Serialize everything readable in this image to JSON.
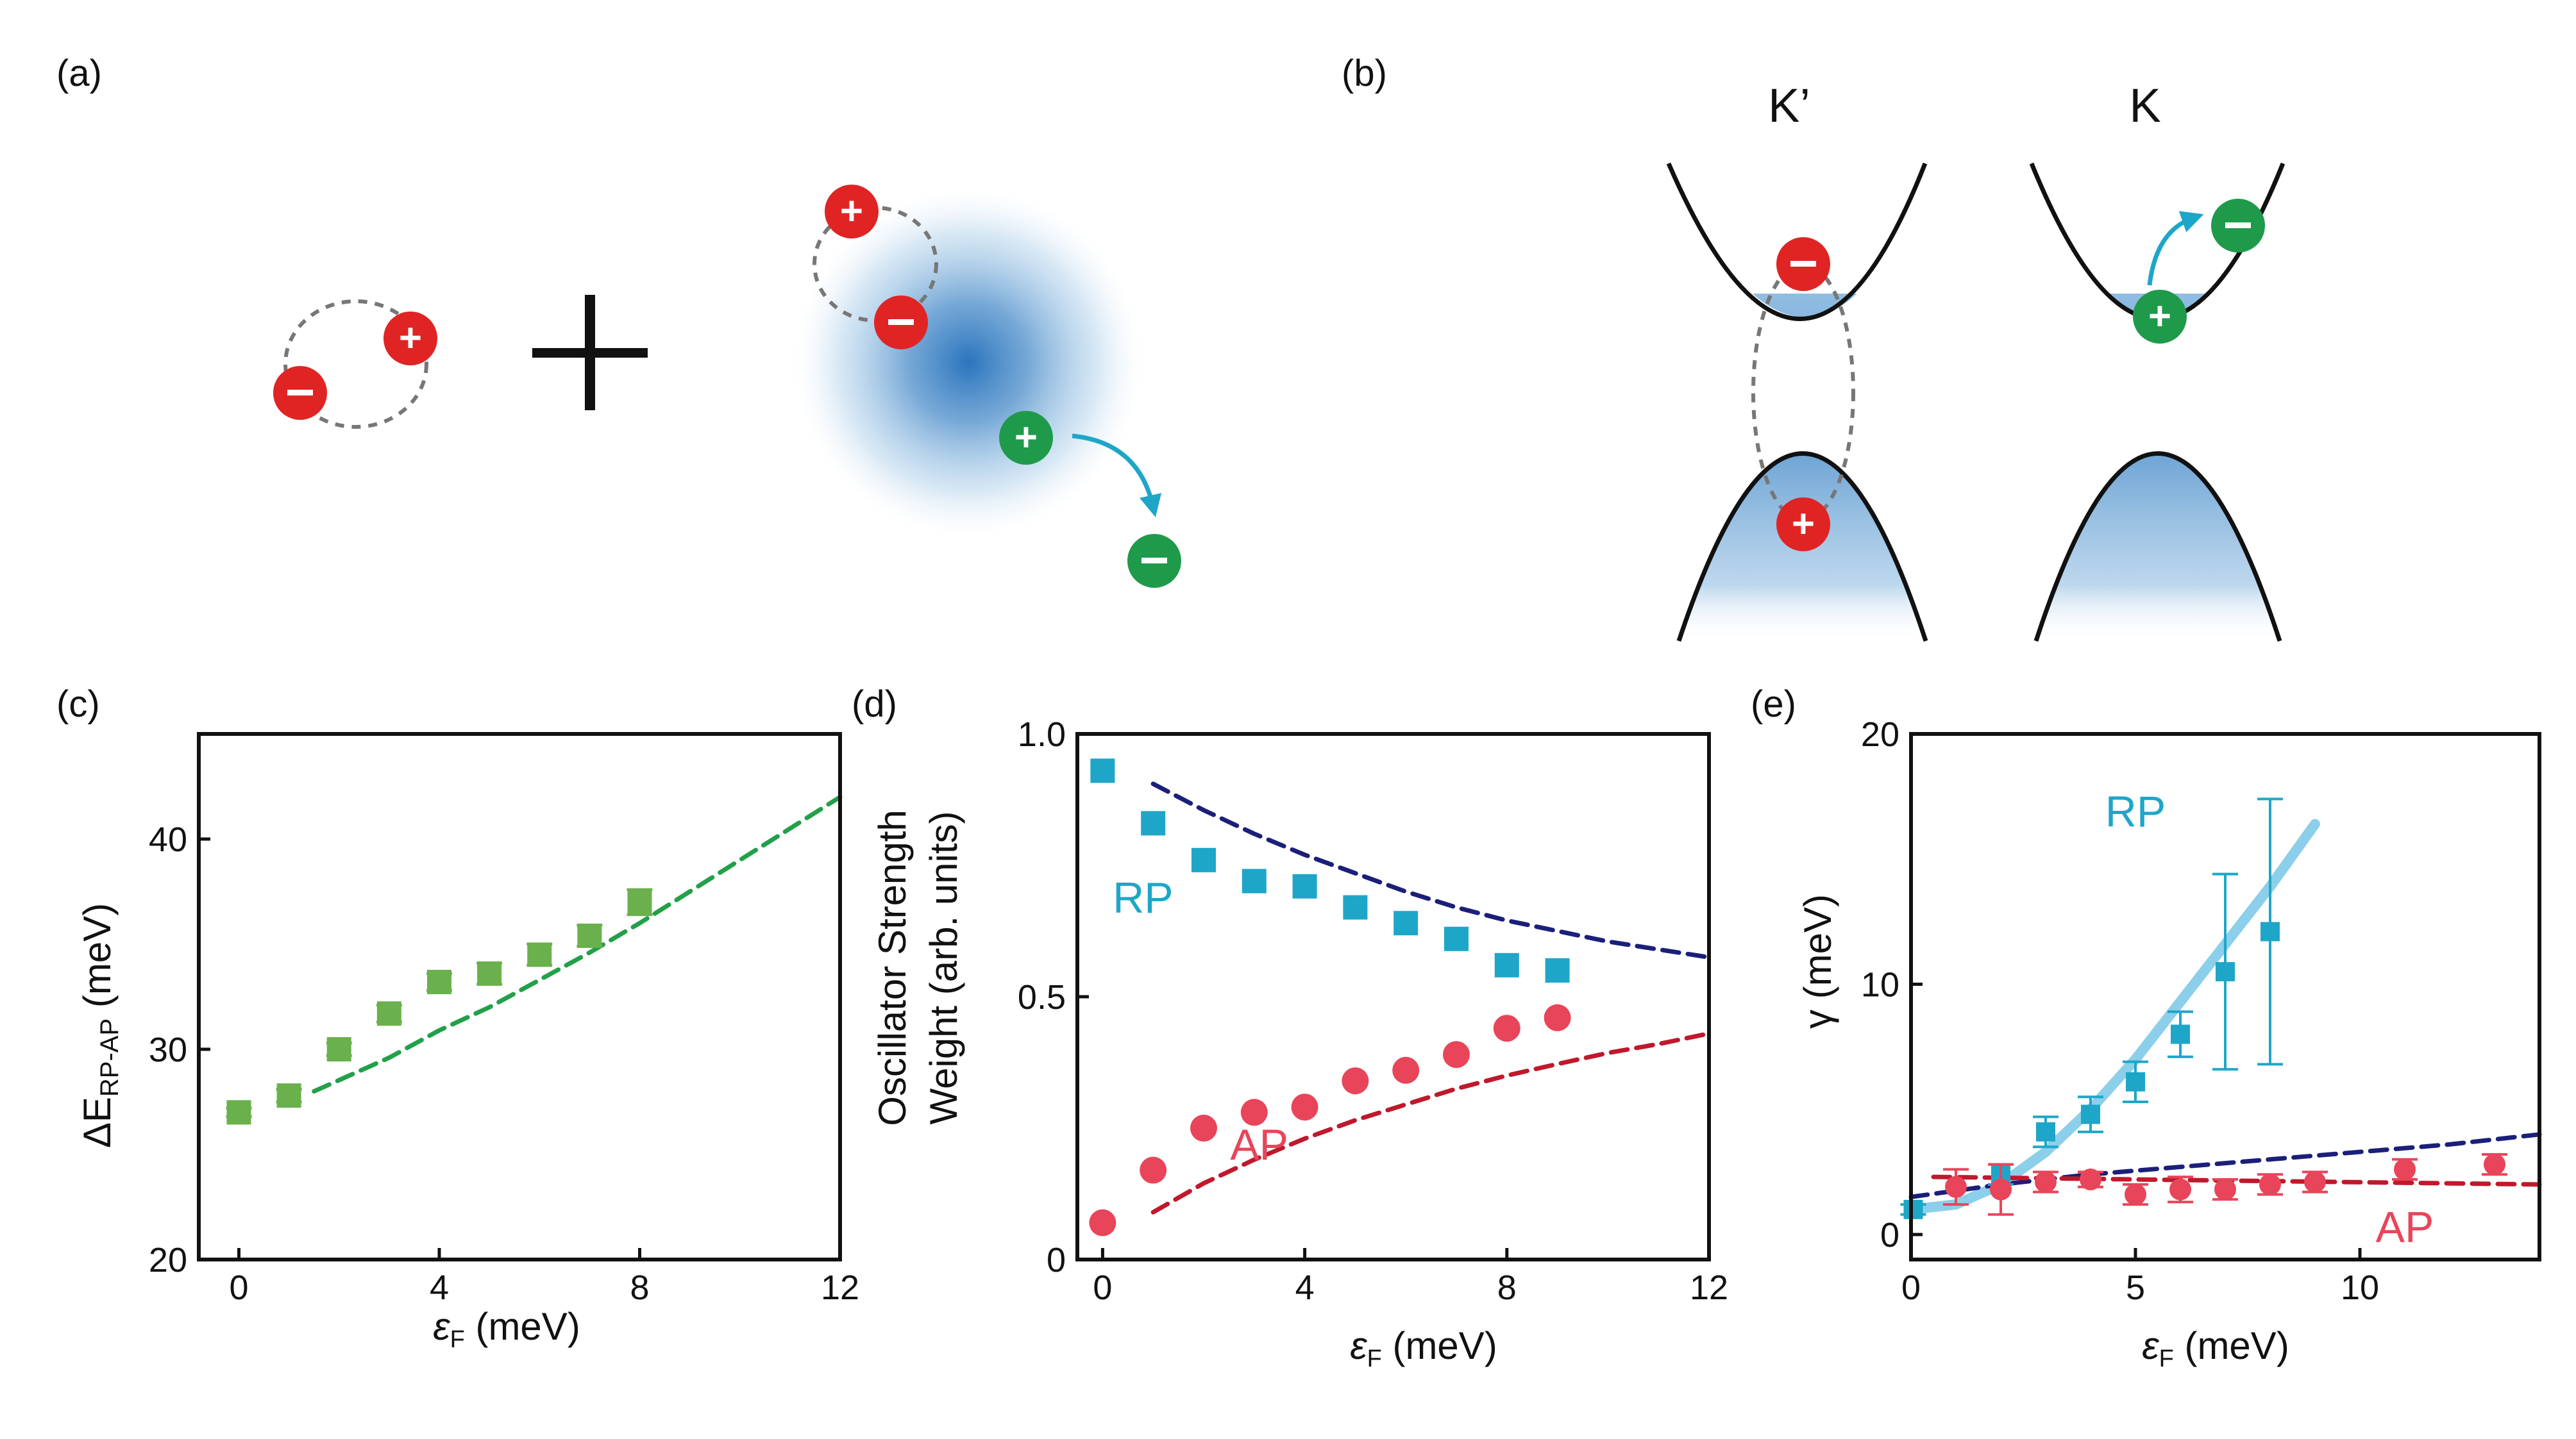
{
  "colors": {
    "exciton_red": "#e02424",
    "electron_green": "#1f9a4a",
    "rp": "#1ea6c8",
    "rp_fit": "#8ccfea",
    "ap": "#e8455a",
    "ap_fit": "#c0182c",
    "navy": "#1b1f7a",
    "green_fit": "#22a04a",
    "green_marker": "#6ab04c",
    "cloud_blue": "#3b82c4"
  },
  "panels": {
    "a": {
      "label": "(a)",
      "plus_sign": "+",
      "minus_sign": "−",
      "plus_icon": "plus-icon",
      "minus_icon": "minus-icon"
    },
    "b": {
      "label": "(b)",
      "valley_left": "K’",
      "valley_right": "K"
    },
    "c": {
      "label": "(c)"
    },
    "d": {
      "label": "(d)"
    },
    "e": {
      "label": "(e)"
    }
  },
  "chart_data": [
    {
      "panel": "c",
      "type": "scatter",
      "title": "",
      "xlabel_sym": "ε",
      "xlabel_sub": "F",
      "xlabel_unit": " (meV)",
      "ylabel_main": "ΔE",
      "ylabel_sub": "RP-AP",
      "ylabel_unit": " (meV)",
      "xlim": [
        -0.8,
        12
      ],
      "ylim": [
        20,
        45
      ],
      "xticks": [
        0,
        4,
        8,
        12
      ],
      "xtick_labels": [
        "0",
        "4",
        "8",
        "12"
      ],
      "yticks": [
        20,
        30,
        40
      ],
      "ytick_labels": [
        "20",
        "30",
        "40"
      ],
      "series": [
        {
          "name": "ΔE",
          "marker": "square",
          "color": "#6ab04c",
          "x": [
            0,
            1,
            2,
            3,
            4,
            5,
            6,
            7,
            8
          ],
          "y": [
            27.0,
            27.8,
            30.0,
            31.7,
            33.2,
            33.6,
            34.5,
            35.4,
            37.0
          ],
          "err": [
            0.2,
            0.3,
            0.3,
            0.4,
            0.4,
            0.5,
            0.5,
            0.5,
            0.6
          ]
        }
      ],
      "fits": [
        {
          "name": "fit",
          "style": "dashed",
          "color": "#22a04a",
          "x": [
            1.5,
            3,
            4,
            5,
            6,
            7,
            8,
            9,
            10,
            11,
            12
          ],
          "y": [
            28.0,
            29.6,
            30.9,
            32.0,
            33.3,
            34.6,
            36.0,
            37.5,
            39.0,
            40.5,
            42.0
          ]
        }
      ]
    },
    {
      "panel": "d",
      "type": "scatter",
      "title": "",
      "xlabel_sym": "ε",
      "xlabel_sub": "F",
      "xlabel_unit": " (meV)",
      "ylabel_line1": "Oscillator Strength",
      "ylabel_line2": "Weight (arb. units)",
      "xlim": [
        -0.5,
        12
      ],
      "ylim": [
        0,
        1.0
      ],
      "xticks": [
        0,
        4,
        8,
        12
      ],
      "xtick_labels": [
        "0",
        "4",
        "8",
        "12"
      ],
      "yticks": [
        0,
        0.5,
        1.0
      ],
      "ytick_labels": [
        "0",
        "0.5",
        "1.0"
      ],
      "annotations": [
        {
          "text": "RP",
          "x": 0.8,
          "y": 0.66,
          "color": "#1ea6c8"
        },
        {
          "text": "AP",
          "x": 3.1,
          "y": 0.19,
          "color": "#e8455a"
        }
      ],
      "series": [
        {
          "name": "RP",
          "marker": "square",
          "color": "#1ea6c8",
          "x": [
            0,
            1,
            2,
            3,
            4,
            5,
            6,
            7,
            8,
            9
          ],
          "y": [
            0.93,
            0.83,
            0.76,
            0.72,
            0.71,
            0.67,
            0.64,
            0.61,
            0.56,
            0.55
          ]
        },
        {
          "name": "AP",
          "marker": "circle",
          "color": "#e8455a",
          "x": [
            0,
            1,
            2,
            3,
            4,
            5,
            6,
            7,
            8,
            9
          ],
          "y": [
            0.07,
            0.17,
            0.25,
            0.28,
            0.29,
            0.34,
            0.36,
            0.39,
            0.44,
            0.46
          ]
        }
      ],
      "fits": [
        {
          "name": "RP theory",
          "style": "dashed",
          "color": "#1b1f7a",
          "x": [
            1,
            2,
            3,
            4,
            5,
            6,
            7,
            8,
            9,
            10,
            11,
            12
          ],
          "y": [
            0.905,
            0.855,
            0.81,
            0.77,
            0.735,
            0.7,
            0.67,
            0.645,
            0.625,
            0.605,
            0.59,
            0.575
          ]
        },
        {
          "name": "AP theory",
          "style": "dashed",
          "color": "#c0182c",
          "x": [
            1,
            2,
            3,
            4,
            5,
            6,
            7,
            8,
            9,
            10,
            11,
            12
          ],
          "y": [
            0.09,
            0.145,
            0.19,
            0.23,
            0.265,
            0.295,
            0.325,
            0.35,
            0.372,
            0.393,
            0.41,
            0.43
          ]
        }
      ]
    },
    {
      "panel": "e",
      "type": "scatter",
      "title": "",
      "xlabel_sym": "ε",
      "xlabel_sub": "F",
      "xlabel_unit": " (meV)",
      "ylabel_main": "γ (meV)",
      "xlim": [
        0,
        14
      ],
      "ylim": [
        -1,
        20
      ],
      "xticks": [
        0,
        5,
        10
      ],
      "xtick_labels": [
        "0",
        "5",
        "10"
      ],
      "yticks": [
        0,
        10,
        20
      ],
      "ytick_labels": [
        "0",
        "10",
        "20"
      ],
      "annotations": [
        {
          "text": "RP",
          "x": 5.0,
          "y": 16.3,
          "color": "#1ea6c8"
        },
        {
          "text": "AP",
          "x": 11.0,
          "y": -0.3,
          "color": "#e8455a"
        }
      ],
      "series": [
        {
          "name": "RP",
          "marker": "square",
          "color": "#1ea6c8",
          "x": [
            0.05,
            2,
            3,
            4,
            5,
            6,
            7,
            8
          ],
          "y": [
            1.0,
            2.4,
            4.1,
            4.8,
            6.1,
            8.0,
            10.5,
            12.1
          ],
          "err": [
            0.2,
            0.4,
            0.6,
            0.7,
            0.8,
            0.9,
            3.9,
            5.3
          ]
        },
        {
          "name": "AP",
          "marker": "circle",
          "color": "#e8455a",
          "x": [
            1,
            2,
            3,
            4,
            5,
            6,
            7,
            8,
            9,
            11,
            13
          ],
          "y": [
            1.9,
            1.8,
            2.1,
            2.2,
            1.6,
            1.8,
            1.8,
            2.0,
            2.1,
            2.6,
            2.8
          ],
          "err": [
            0.7,
            1.0,
            0.4,
            0.3,
            0.4,
            0.5,
            0.4,
            0.4,
            0.4,
            0.4,
            0.4
          ]
        }
      ],
      "fits": [
        {
          "name": "RP fit",
          "style": "solid",
          "color": "#8ccfea",
          "x": [
            0,
            1,
            2,
            3,
            4,
            5,
            6,
            7,
            8,
            9
          ],
          "y": [
            1.0,
            1.2,
            2.0,
            3.3,
            5.0,
            7.0,
            9.3,
            11.6,
            13.9,
            16.4
          ]
        },
        {
          "name": "theory",
          "style": "dashed",
          "color": "#1b1f7a",
          "x": [
            0,
            2,
            4,
            6,
            8,
            10,
            12,
            14
          ],
          "y": [
            1.5,
            2.0,
            2.4,
            2.7,
            3.0,
            3.3,
            3.6,
            4.0
          ]
        },
        {
          "name": "AP fit",
          "style": "dashed",
          "color": "#c0182c",
          "x": [
            0.5,
            14
          ],
          "y": [
            2.3,
            2.0
          ]
        }
      ]
    }
  ]
}
